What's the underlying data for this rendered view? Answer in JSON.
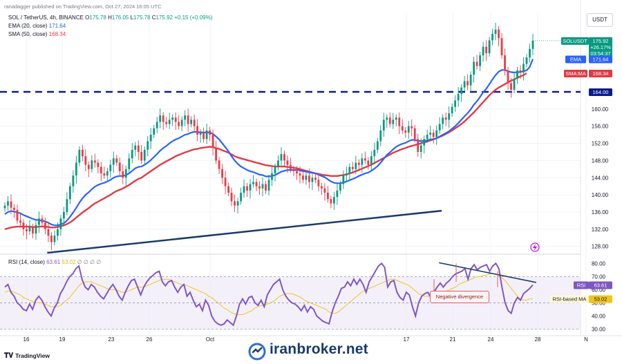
{
  "header": {
    "publisher": "ranadagger published on TradingView.com, Oct 27, 2024 16:05 UTC",
    "symbol": "SOL / TetherUS, 4h, BINANCE",
    "ohlc": [
      {
        "k": "O",
        "v": "175.78"
      },
      {
        "k": "H",
        "v": "176.05"
      },
      {
        "k": "L",
        "v": "175.78"
      },
      {
        "k": "C",
        "v": "175.92"
      }
    ],
    "change": "+0.15 (+0.09%)",
    "ema_label": "EMA (20, close)",
    "ema_value": "171.64",
    "sma_label": "SMA (50, close)",
    "sma_value": "168.34",
    "currency": "USDT"
  },
  "rsi_header": {
    "label": "RSI (14, close)",
    "value": "63.61",
    "value2": "53.02",
    "extras": "∅ ∅ ∅ ∅"
  },
  "annotation": "Negative divergence",
  "watermark": "iranbroker.net",
  "footer_logo": "TradingView",
  "colors": {
    "up": "#089981",
    "down": "#f23645",
    "ema": "#2962ff",
    "sma": "#e03a45",
    "trendline": "#1b3a6b",
    "rsi": "#7e57c2",
    "rsi_ma": "#f0c419",
    "rsi_band": "#e9e4f5"
  },
  "chart_data": {
    "type": "candlestick",
    "price_axis": {
      "ticks": [
        128,
        132,
        136,
        140,
        144,
        148,
        152,
        156,
        160
      ],
      "tick_labels": [
        "128.00",
        "132.00",
        "136.00",
        "140.00",
        "144.00",
        "148.00",
        "152.00",
        "156.00",
        "160.00"
      ],
      "range": [
        126.5,
        182.5
      ]
    },
    "time_axis": {
      "labels": [
        "16",
        "19",
        "23",
        "26",
        "Oct",
        "17",
        "21",
        "24",
        "28",
        "N"
      ]
    },
    "price_labels": {
      "symbol_tag": "SOLUSDT",
      "last": "175.92",
      "last_change": "+26.17%",
      "countdown": "03:54:37",
      "ema_tag": "EMA",
      "ema": "171.64",
      "sma_tag": "SMA:MA",
      "sma": "168.34",
      "support": "164.00"
    },
    "support_level": 164.0,
    "trendline": {
      "from": {
        "t": 0.08,
        "p": 126.5
      },
      "to": {
        "t": 0.79,
        "p": 136.3
      }
    },
    "close": [
      137.5,
      138.5,
      137.0,
      136.5,
      134.0,
      133.5,
      132.0,
      131.5,
      132.5,
      131.0,
      133.0,
      134.5,
      133.5,
      132.0,
      130.5,
      129.0,
      130.5,
      132.0,
      134.5,
      136.0,
      139.0,
      142.0,
      144.5,
      147.5,
      150.5,
      149.0,
      147.0,
      146.0,
      148.0,
      147.5,
      146.5,
      145.0,
      144.5,
      145.5,
      147.0,
      148.5,
      147.5,
      145.5,
      144.0,
      146.0,
      148.5,
      150.5,
      151.5,
      150.0,
      148.0,
      150.5,
      152.5,
      154.0,
      155.5,
      157.0,
      158.5,
      157.0,
      156.5,
      157.5,
      158.0,
      157.0,
      156.0,
      157.5,
      158.5,
      156.5,
      157.5,
      156.0,
      154.0,
      154.5,
      153.0,
      155.0,
      154.0,
      151.0,
      148.0,
      146.0,
      144.0,
      142.0,
      140.5,
      138.5,
      137.5,
      138.5,
      140.5,
      142.0,
      141.0,
      142.5,
      143.0,
      142.0,
      141.5,
      142.5,
      141.0,
      143.5,
      145.0,
      146.5,
      148.0,
      149.5,
      148.0,
      147.0,
      146.0,
      145.5,
      145.0,
      144.5,
      143.5,
      144.5,
      143.0,
      144.0,
      143.5,
      142.0,
      141.5,
      140.5,
      139.0,
      138.0,
      139.5,
      141.0,
      142.5,
      144.5,
      145.0,
      146.5,
      146.0,
      147.5,
      147.0,
      148.5,
      148.0,
      147.0,
      149.0,
      150.5,
      152.5,
      155.0,
      157.5,
      158.0,
      156.5,
      157.5,
      158.0,
      156.0,
      155.0,
      154.5,
      156.0,
      155.5,
      153.0,
      150.0,
      151.5,
      153.0,
      154.0,
      154.5,
      153.5,
      155.0,
      156.5,
      158.0,
      157.5,
      159.0,
      160.5,
      162.0,
      163.5,
      165.0,
      166.5,
      165.5,
      168.0,
      171.0,
      170.0,
      172.5,
      174.5,
      173.0,
      176.0,
      177.5,
      178.5,
      176.5,
      172.5,
      169.0,
      166.0,
      164.5,
      167.0,
      169.0,
      168.5,
      170.5,
      172.0,
      174.0,
      175.92
    ],
    "ema_20": [
      135.5,
      136.0,
      136.2,
      136.1,
      135.9,
      135.7,
      135.3,
      135.0,
      134.7,
      134.4,
      134.2,
      134.1,
      134.0,
      133.8,
      133.5,
      133.1,
      132.9,
      132.9,
      133.1,
      133.4,
      134.0,
      134.9,
      135.9,
      137.0,
      138.2,
      139.2,
      140.0,
      140.6,
      141.3,
      141.9,
      142.3,
      142.6,
      142.8,
      143.1,
      143.5,
      144.0,
      144.3,
      144.4,
      144.4,
      144.6,
      145.0,
      145.6,
      146.2,
      146.5,
      146.6,
      147.0,
      147.5,
      148.1,
      148.8,
      149.5,
      150.3,
      150.9,
      151.4,
      152.0,
      152.5,
      152.9,
      153.2,
      153.6,
      154.0,
      154.2,
      154.5,
      154.7,
      154.6,
      154.6,
      154.5,
      154.6,
      154.5,
      154.2,
      153.6,
      152.9,
      152.0,
      151.1,
      150.1,
      149.0,
      148.0,
      147.2,
      146.6,
      146.2,
      145.8,
      145.5,
      145.3,
      145.0,
      144.7,
      144.6,
      144.3,
      144.3,
      144.4,
      144.6,
      145.0,
      145.4,
      145.6,
      145.8,
      145.8,
      145.8,
      145.8,
      145.7,
      145.5,
      145.4,
      145.2,
      145.1,
      145.0,
      144.7,
      144.4,
      144.1,
      143.6,
      143.1,
      142.8,
      142.7,
      142.7,
      142.9,
      143.1,
      143.4,
      143.7,
      144.0,
      144.4,
      144.7,
      145.0,
      145.2,
      145.6,
      146.1,
      146.7,
      147.5,
      148.4,
      149.3,
      149.9,
      150.6,
      151.2,
      151.6,
      151.9,
      152.1,
      152.5,
      152.8,
      152.8,
      152.6,
      152.5,
      152.6,
      152.7,
      152.9,
      153.0,
      153.2,
      153.6,
      154.0,
      154.4,
      154.8,
      155.4,
      156.0,
      156.7,
      157.5,
      158.3,
      159.0,
      159.9,
      161.0,
      161.8,
      162.8,
      163.9,
      164.7,
      165.8,
      166.9,
      167.9,
      168.7,
      169.1,
      169.1,
      168.8,
      168.6,
      168.5,
      168.6,
      168.6,
      168.8,
      169.0,
      169.8,
      171.64
    ],
    "sma_50": [
      132.0,
      132.2,
      132.4,
      132.5,
      132.6,
      132.6,
      132.6,
      132.6,
      132.6,
      132.5,
      132.5,
      132.6,
      132.6,
      132.6,
      132.5,
      132.4,
      132.4,
      132.5,
      132.7,
      132.9,
      133.2,
      133.6,
      134.1,
      134.7,
      135.3,
      135.9,
      136.4,
      136.9,
      137.5,
      138.0,
      138.4,
      138.8,
      139.2,
      139.6,
      140.0,
      140.5,
      140.9,
      141.2,
      141.5,
      141.9,
      142.3,
      142.8,
      143.3,
      143.7,
      144.0,
      144.5,
      145.0,
      145.5,
      146.0,
      146.5,
      147.0,
      147.4,
      147.8,
      148.2,
      148.6,
      149.0,
      149.3,
      149.6,
      149.9,
      150.1,
      150.4,
      150.6,
      150.7,
      150.9,
      151.0,
      151.1,
      151.2,
      151.1,
      150.9,
      150.7,
      150.4,
      150.1,
      149.8,
      149.4,
      149.0,
      148.7,
      148.5,
      148.3,
      148.1,
      147.9,
      147.7,
      147.5,
      147.3,
      147.1,
      146.9,
      146.8,
      146.7,
      146.6,
      146.6,
      146.6,
      146.6,
      146.5,
      146.4,
      146.3,
      146.2,
      146.0,
      145.8,
      145.6,
      145.4,
      145.2,
      145.0,
      144.9,
      144.7,
      144.6,
      144.5,
      144.4,
      144.4,
      144.4,
      144.5,
      144.6,
      144.8,
      145.0,
      145.2,
      145.5,
      145.8,
      146.1,
      146.4,
      146.7,
      147.0,
      147.4,
      147.8,
      148.2,
      148.6,
      149.0,
      149.4,
      149.8,
      150.1,
      150.4,
      150.7,
      150.9,
      151.2,
      151.4,
      151.6,
      151.8,
      152.0,
      152.2,
      152.4,
      152.7,
      152.9,
      153.2,
      153.5,
      153.8,
      154.2,
      154.6,
      155.0,
      155.5,
      156.0,
      156.5,
      157.1,
      157.8,
      158.5,
      159.2,
      160.0,
      160.8,
      161.6,
      162.4,
      163.2,
      163.9,
      164.5,
      165.0,
      165.4,
      165.8,
      166.2,
      166.6,
      166.9,
      167.3,
      167.6,
      167.9,
      168.34
    ],
    "rsi": {
      "ticks": [
        30,
        40,
        50,
        60,
        70,
        80
      ],
      "tick_labels": [
        "30.00",
        "40.00",
        "50.00",
        "60.00",
        "70.00",
        "80.00"
      ],
      "band": [
        30,
        70
      ],
      "last_label_tag": "RSI",
      "last": "63.61",
      "ma_label_tag": "RSI-based MA",
      "ma": "53.02",
      "values": [
        62,
        64,
        58,
        55,
        50,
        48,
        45,
        44,
        49,
        45,
        52,
        55,
        52,
        47,
        43,
        40,
        46,
        50,
        57,
        61,
        66,
        70,
        72,
        76,
        78,
        68,
        62,
        60,
        64,
        62,
        58,
        55,
        53,
        57,
        61,
        64,
        60,
        55,
        52,
        58,
        63,
        67,
        68,
        62,
        56,
        62,
        66,
        69,
        71,
        73,
        74,
        66,
        63,
        66,
        67,
        62,
        58,
        62,
        64,
        55,
        58,
        52,
        47,
        49,
        44,
        52,
        48,
        40,
        36,
        34,
        33,
        34,
        37,
        35,
        33,
        40,
        49,
        53,
        49,
        54,
        55,
        50,
        48,
        52,
        47,
        56,
        60,
        64,
        66,
        68,
        60,
        55,
        52,
        50,
        49,
        47,
        44,
        48,
        43,
        47,
        45,
        40,
        38,
        36,
        35,
        34,
        43,
        50,
        55,
        61,
        62,
        66,
        63,
        68,
        64,
        68,
        64,
        58,
        66,
        70,
        74,
        78,
        80,
        77,
        62,
        66,
        67,
        58,
        54,
        52,
        58,
        56,
        47,
        40,
        50,
        55,
        57,
        58,
        54,
        58,
        62,
        65,
        62,
        65,
        67,
        70,
        72,
        73,
        74,
        76,
        68,
        76,
        79,
        75,
        77,
        78,
        79,
        74,
        78,
        80,
        76,
        62,
        50,
        44,
        42,
        50,
        54,
        52,
        57,
        59,
        61,
        63.61
      ],
      "ma_values": [
        58,
        59,
        59,
        58,
        57,
        56,
        54,
        53,
        52,
        51,
        50,
        50,
        50,
        49,
        48,
        47,
        47,
        47,
        48,
        50,
        52,
        54,
        57,
        60,
        63,
        65,
        66,
        66,
        66,
        65,
        64,
        63,
        62,
        61,
        60,
        60,
        60,
        59,
        58,
        58,
        59,
        60,
        61,
        62,
        62,
        62,
        63,
        64,
        65,
        66,
        67,
        68,
        68,
        68,
        67,
        66,
        65,
        64,
        64,
        63,
        62,
        61,
        60,
        59,
        58,
        57,
        55,
        54,
        52,
        50,
        48,
        46,
        45,
        43,
        42,
        41,
        41,
        41,
        42,
        43,
        44,
        46,
        47,
        48,
        48,
        49,
        50,
        51,
        53,
        55,
        56,
        57,
        57,
        57,
        56,
        55,
        54,
        52,
        51,
        50,
        49,
        48,
        47,
        46,
        45,
        43,
        42,
        42,
        43,
        45,
        47,
        49,
        51,
        53,
        55,
        57,
        59,
        60,
        61,
        62,
        63,
        64,
        65,
        66,
        67,
        68,
        68,
        67,
        66,
        65,
        64,
        63,
        61,
        59,
        57,
        56,
        55,
        55,
        55,
        56,
        56,
        57,
        58,
        59,
        60,
        61,
        62,
        64,
        65,
        66,
        67,
        68,
        69,
        70,
        70,
        71,
        71,
        72,
        72,
        72,
        71,
        69,
        67,
        64,
        61,
        58,
        55,
        53,
        52,
        52,
        53,
        53.02
      ]
    },
    "divergence_line": {
      "from": {
        "t": 0.785,
        "v": 80.5
      },
      "to": {
        "t": 0.96,
        "v": 65.5
      }
    }
  }
}
